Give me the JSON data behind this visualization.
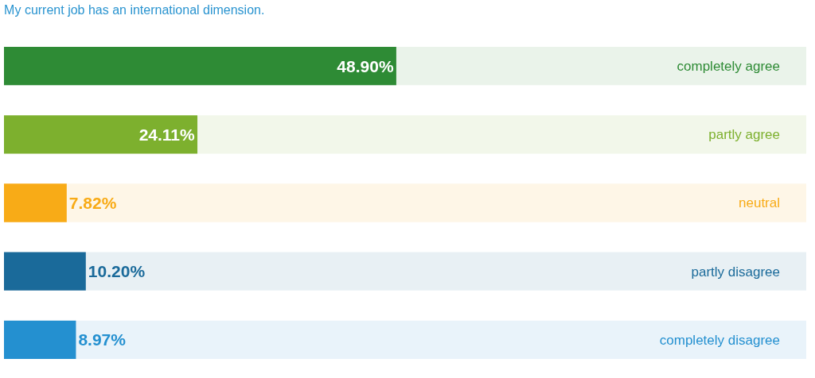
{
  "chart_data": {
    "type": "bar",
    "orientation": "horizontal",
    "title": "My current job has an international dimension.",
    "categories": [
      "completely agree",
      "partly agree",
      "neutral",
      "partly disagree",
      "completely disagree"
    ],
    "values": [
      48.9,
      24.11,
      7.82,
      10.2,
      8.97
    ],
    "value_labels": [
      "48.90%",
      "24.11%",
      "7.82%",
      "10.20%",
      "8.97%"
    ],
    "colors": [
      "#2e8b35",
      "#7db02e",
      "#f8ab17",
      "#1a6a9a",
      "#2490d0"
    ],
    "xlim": [
      0,
      100
    ],
    "tick_labels": false,
    "grid": false,
    "legend": false
  }
}
